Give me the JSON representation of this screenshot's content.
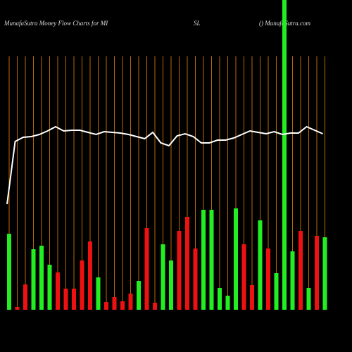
{
  "chart_data": {
    "type": "money-flow",
    "title": "MunafaSutra  Money Flow  Charts for MI",
    "title_mid": "SL",
    "title_right": "() MunafaSutra.com",
    "ylim": [
      0,
      440
    ],
    "background": "#000000",
    "divider_color": "#b86a00",
    "line_color": "#ffffff",
    "series": [
      {
        "name": "flow",
        "values": [
          108,
          4,
          36,
          86,
          91,
          64,
          53,
          30,
          30,
          70,
          97,
          46,
          11,
          18,
          12,
          23,
          41,
          116,
          10,
          93,
          70,
          112,
          132,
          87,
          142,
          142,
          31,
          20,
          144,
          93,
          35,
          127,
          87,
          52,
          440,
          83,
          112,
          31,
          105,
          103
        ],
        "colors": [
          "#22ee22",
          "#ee1111",
          "#ee1111",
          "#22ee22",
          "#22ee22",
          "#22ee22",
          "#ee1111",
          "#ee1111",
          "#ee1111",
          "#ee1111",
          "#ee1111",
          "#22ee22",
          "#ee1111",
          "#ee1111",
          "#ee1111",
          "#ee1111",
          "#22ee22",
          "#ee1111",
          "#ee1111",
          "#22ee22",
          "#22ee22",
          "#ee1111",
          "#ee1111",
          "#ee1111",
          "#22ee22",
          "#22ee22",
          "#22ee22",
          "#22ee22",
          "#22ee22",
          "#ee1111",
          "#ee1111",
          "#22ee22",
          "#ee1111",
          "#22ee22",
          "#22ee22",
          "#22ee22",
          "#ee1111",
          "#22ee22",
          "#ee1111",
          "#22ee22"
        ]
      },
      {
        "name": "price",
        "values": [
          150,
          239,
          245,
          246,
          249,
          254,
          260,
          254,
          255,
          255,
          252,
          249,
          253,
          252,
          251,
          249,
          246,
          243,
          252,
          237,
          233,
          247,
          250,
          246,
          237,
          237,
          241,
          241,
          244,
          249,
          254,
          252,
          250,
          253,
          249,
          251,
          251,
          260,
          255,
          250
        ]
      }
    ]
  }
}
